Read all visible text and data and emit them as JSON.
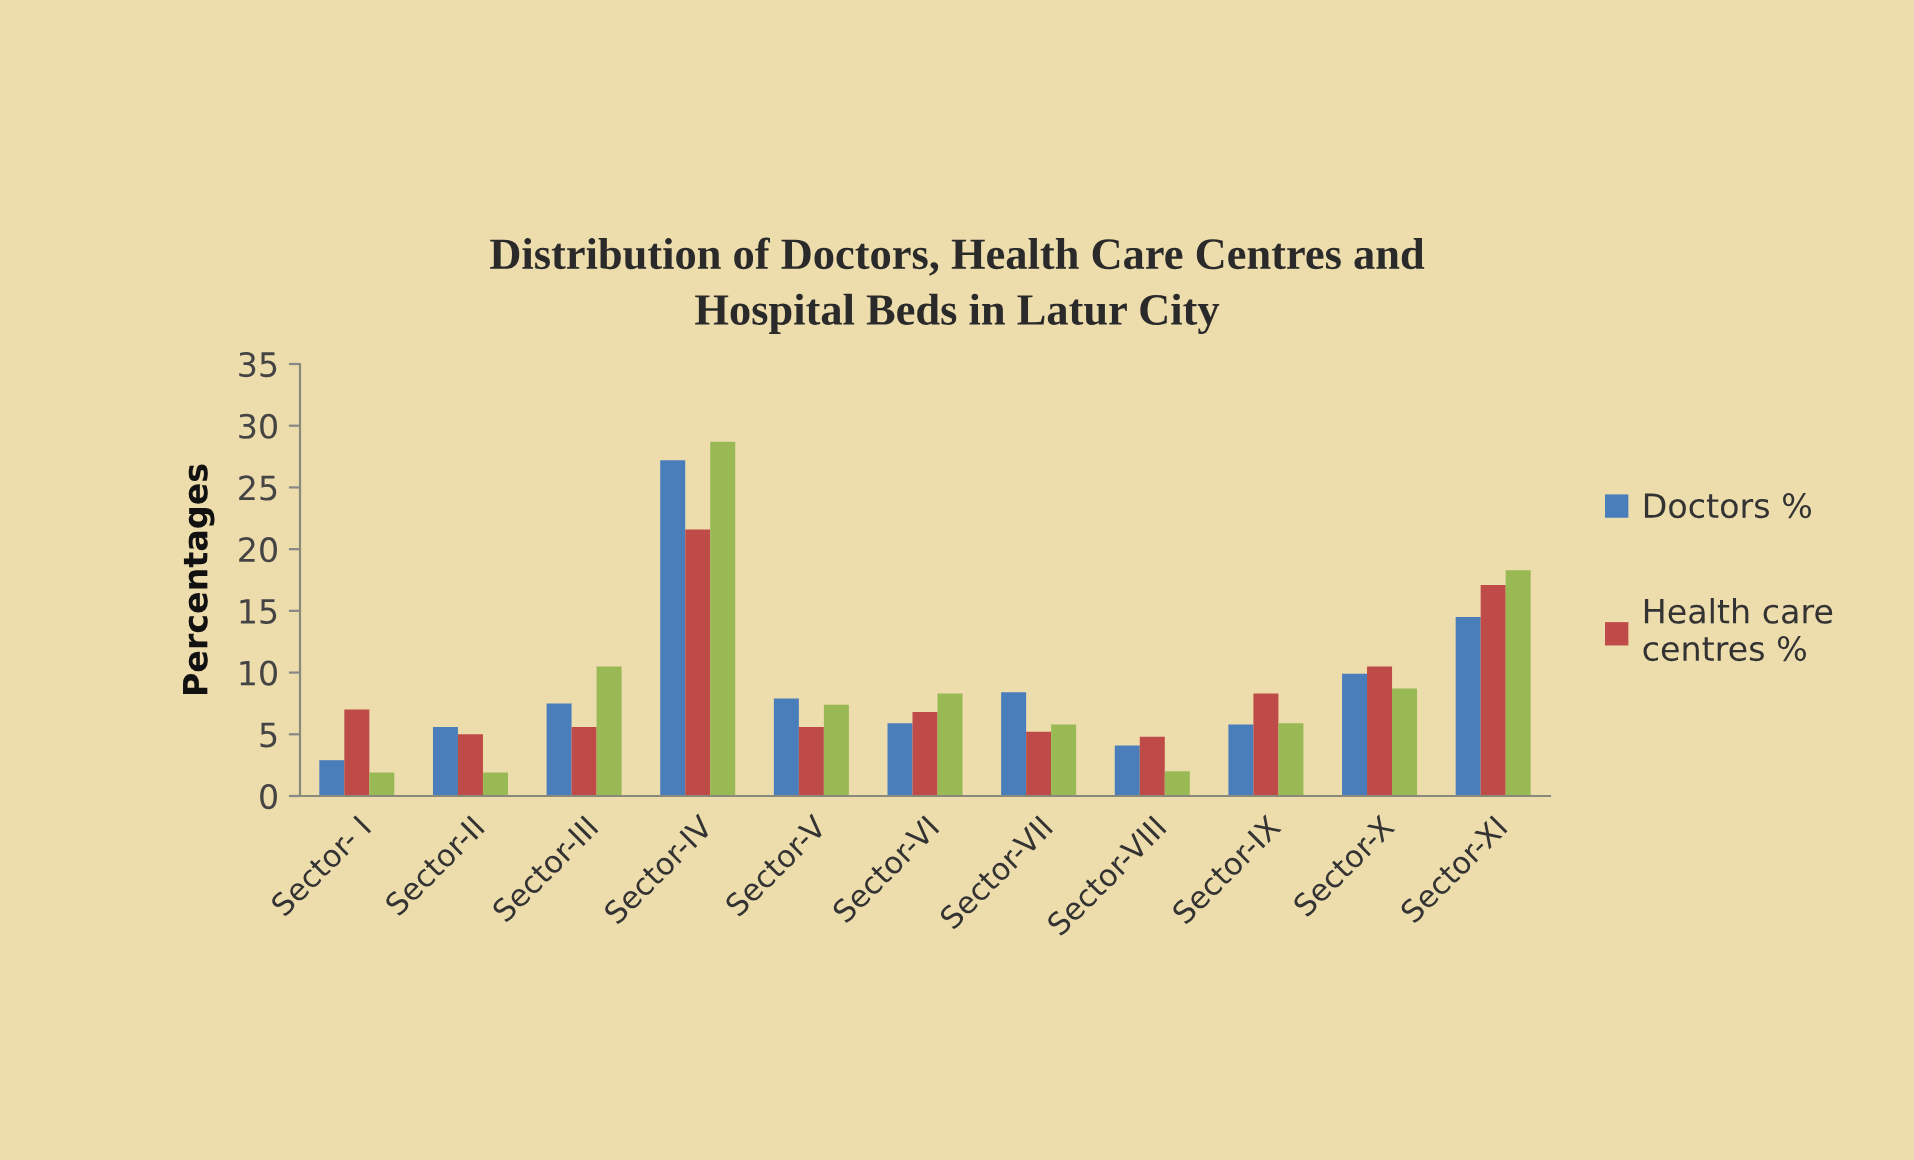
{
  "chart_data": {
    "type": "bar",
    "title": "Distribution of Doctors, Health Care Centres and\nHospital Beds in Latur City",
    "ylabel": "Percentages",
    "categories": [
      "Sector- I",
      "Sector-II",
      "Sector-III",
      "Sector-IV",
      "Sector-V",
      "Sector-VI",
      "Sector-VII",
      "Sector-VIII",
      "Sector-IX",
      "Sector-X",
      "Sector-XI"
    ],
    "series": [
      {
        "name": "Doctors %",
        "color": "#4a7ebb",
        "values": [
          2.9,
          5.6,
          7.5,
          27.2,
          7.9,
          5.9,
          8.4,
          4.1,
          5.8,
          9.9,
          14.5
        ]
      },
      {
        "name": "Health care\ncentres %",
        "color": "#be4b48",
        "values": [
          7.0,
          5.0,
          5.6,
          21.6,
          5.6,
          6.8,
          5.2,
          4.8,
          8.3,
          10.5,
          17.1
        ]
      },
      {
        "color": "#98b954",
        "values": [
          1.9,
          1.9,
          10.5,
          28.7,
          7.4,
          8.3,
          5.8,
          2.0,
          5.9,
          8.7,
          18.3
        ]
      }
    ],
    "ylim": [
      0,
      35
    ],
    "yticks": [
      0,
      5,
      10,
      15,
      20,
      25,
      30,
      35
    ],
    "legend": "right"
  }
}
